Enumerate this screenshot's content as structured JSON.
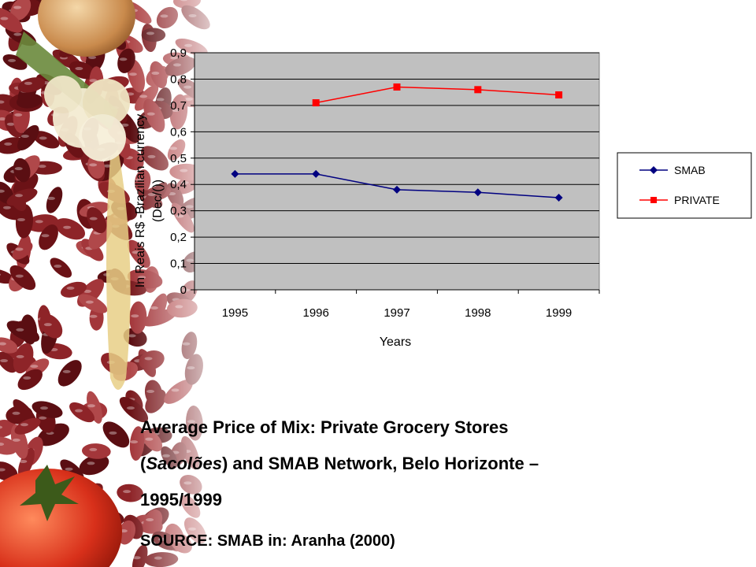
{
  "chart_data": {
    "type": "line",
    "categories": [
      "1995",
      "1996",
      "1997",
      "1998",
      "1999"
    ],
    "series": [
      {
        "name": "SMAB",
        "values": [
          0.44,
          0.44,
          0.38,
          0.37,
          0.35
        ],
        "color": "#000080",
        "marker": "diamond"
      },
      {
        "name": "PRIVATE",
        "values": [
          null,
          0.71,
          0.77,
          0.76,
          0.74
        ],
        "color": "#ff0000",
        "marker": "square"
      }
    ],
    "yticks": [
      "0",
      "0,1",
      "0,2",
      "0,3",
      "0,4",
      "0,5",
      "0,6",
      "0,7",
      "0,8",
      "0,9"
    ],
    "ylim": [
      0,
      0.9
    ],
    "ylabel_line1": "In Reais R$ -Brazilian currency",
    "ylabel_line2": "(Dec/())",
    "xlabel": "Years",
    "grid": true,
    "plot_background": "#c0c0c0",
    "legend_position": "right"
  },
  "caption": {
    "line1": "Average Price of Mix: Private Grocery Stores",
    "line2_open": "(",
    "line2_italic": "Sacolões",
    "line2_rest": ") and SMAB Network, Belo Horizonte –",
    "line3": "1995/1999"
  },
  "source": "SOURCE: SMAB in: Aranha (2000)"
}
